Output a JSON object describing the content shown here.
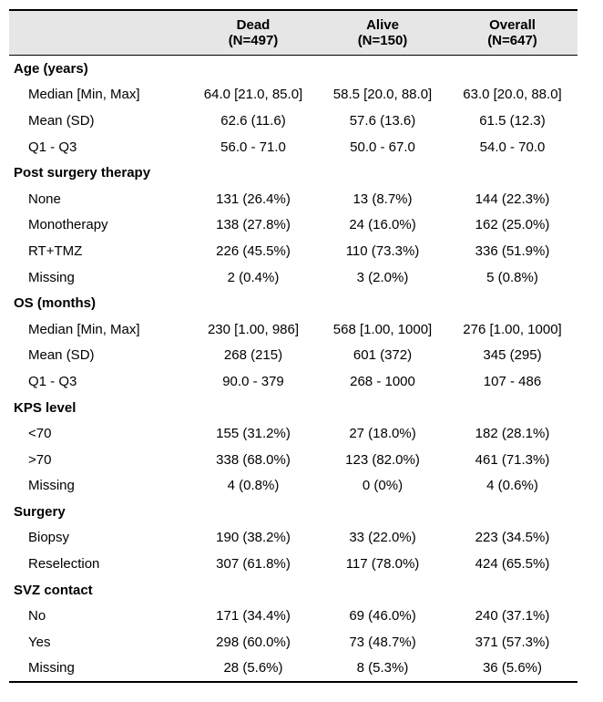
{
  "header": {
    "columns": [
      {
        "name": "Dead",
        "n": "(N=497)"
      },
      {
        "name": "Alive",
        "n": "(N=150)"
      },
      {
        "name": "Overall",
        "n": "(N=647)"
      }
    ]
  },
  "sections": [
    {
      "title": "Age (years)",
      "rows": [
        {
          "label": "Median [Min, Max]",
          "values": [
            "64.0 [21.0, 85.0]",
            "58.5 [20.0, 88.0]",
            "63.0 [20.0, 88.0]"
          ]
        },
        {
          "label": "Mean (SD)",
          "values": [
            "62.6 (11.6)",
            "57.6 (13.6)",
            "61.5 (12.3)"
          ]
        },
        {
          "label": "Q1 - Q3",
          "values": [
            "56.0 - 71.0",
            "50.0 - 67.0",
            "54.0 - 70.0"
          ]
        }
      ]
    },
    {
      "title": "Post surgery therapy",
      "rows": [
        {
          "label": "None",
          "values": [
            "131 (26.4%)",
            "13 (8.7%)",
            "144 (22.3%)"
          ]
        },
        {
          "label": "Monotherapy",
          "values": [
            "138 (27.8%)",
            "24 (16.0%)",
            "162 (25.0%)"
          ]
        },
        {
          "label": "RT+TMZ",
          "values": [
            "226 (45.5%)",
            "110 (73.3%)",
            "336 (51.9%)"
          ]
        },
        {
          "label": "Missing",
          "values": [
            "2 (0.4%)",
            "3 (2.0%)",
            "5 (0.8%)"
          ]
        }
      ]
    },
    {
      "title": "OS (months)",
      "rows": [
        {
          "label": "Median [Min, Max]",
          "values": [
            "230 [1.00, 986]",
            "568 [1.00, 1000]",
            "276 [1.00, 1000]"
          ]
        },
        {
          "label": "Mean (SD)",
          "values": [
            "268 (215)",
            "601 (372)",
            "345 (295)"
          ]
        },
        {
          "label": "Q1 - Q3",
          "values": [
            "90.0 - 379",
            "268 - 1000",
            "107 - 486"
          ]
        }
      ]
    },
    {
      "title": "KPS level",
      "rows": [
        {
          "label": "<70",
          "values": [
            "155 (31.2%)",
            "27 (18.0%)",
            "182 (28.1%)"
          ]
        },
        {
          "label": ">70",
          "values": [
            "338 (68.0%)",
            "123 (82.0%)",
            "461 (71.3%)"
          ]
        },
        {
          "label": "Missing",
          "values": [
            "4 (0.8%)",
            "0 (0%)",
            "4 (0.6%)"
          ]
        }
      ]
    },
    {
      "title": "Surgery",
      "rows": [
        {
          "label": "Biopsy",
          "values": [
            "190 (38.2%)",
            "33 (22.0%)",
            "223 (34.5%)"
          ]
        },
        {
          "label": "Reselection",
          "values": [
            "307 (61.8%)",
            "117 (78.0%)",
            "424 (65.5%)"
          ]
        }
      ]
    },
    {
      "title": "SVZ contact",
      "rows": [
        {
          "label": "No",
          "values": [
            "171 (34.4%)",
            "69 (46.0%)",
            "240 (37.1%)"
          ]
        },
        {
          "label": "Yes",
          "values": [
            "298 (60.0%)",
            "73 (48.7%)",
            "371 (57.3%)"
          ]
        },
        {
          "label": "Missing",
          "values": [
            "28 (5.6%)",
            "8 (5.3%)",
            "36 (5.6%)"
          ]
        }
      ]
    }
  ]
}
